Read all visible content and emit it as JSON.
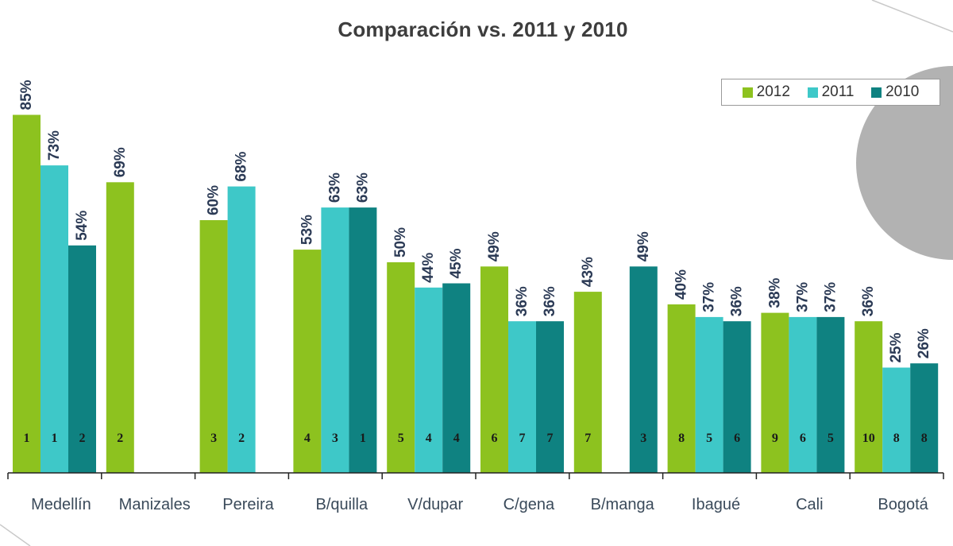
{
  "chart_data": {
    "type": "bar",
    "title": "Comparación vs. 2011 y 2010",
    "xlabel": "",
    "ylabel": "",
    "ylim": [
      0,
      100
    ],
    "grid": false,
    "legend_position": "top-right",
    "categories": [
      "Medellín",
      "Manizales",
      "Pereira",
      "B/quilla",
      "V/dupar",
      "C/gena",
      "B/manga",
      "Ibagué",
      "Cali",
      "Bogotá"
    ],
    "series": [
      {
        "name": "2012",
        "color": "#8dc21f",
        "values": [
          85,
          69,
          60,
          53,
          50,
          49,
          43,
          40,
          38,
          36
        ],
        "value_labels": [
          "85%",
          "69%",
          "60%",
          "53%",
          "50%",
          "49%",
          "43%",
          "40%",
          "38%",
          "36%"
        ],
        "ranks": [
          "1",
          "2",
          "3",
          "4",
          "5",
          "6",
          "7",
          "8",
          "9",
          "10"
        ]
      },
      {
        "name": "2011",
        "color": "#3ec8c8",
        "values": [
          73,
          null,
          68,
          63,
          44,
          36,
          null,
          37,
          37,
          25
        ],
        "value_labels": [
          "73%",
          "",
          "68%",
          "63%",
          "44%",
          "36%",
          "",
          "37%",
          "37%",
          "25%"
        ],
        "ranks": [
          "1",
          "",
          "2",
          "3",
          "4",
          "7",
          "",
          "5",
          "6",
          "8"
        ]
      },
      {
        "name": "2010",
        "color": "#0f8281",
        "values": [
          54,
          null,
          null,
          63,
          45,
          36,
          49,
          36,
          37,
          26
        ],
        "value_labels": [
          "54%",
          "",
          "",
          "63%",
          "45%",
          "36%",
          "49%",
          "36%",
          "37%",
          "26%"
        ],
        "ranks": [
          "2",
          "",
          "",
          "1",
          "4",
          "7",
          "3",
          "6",
          "5",
          "8"
        ]
      }
    ]
  }
}
